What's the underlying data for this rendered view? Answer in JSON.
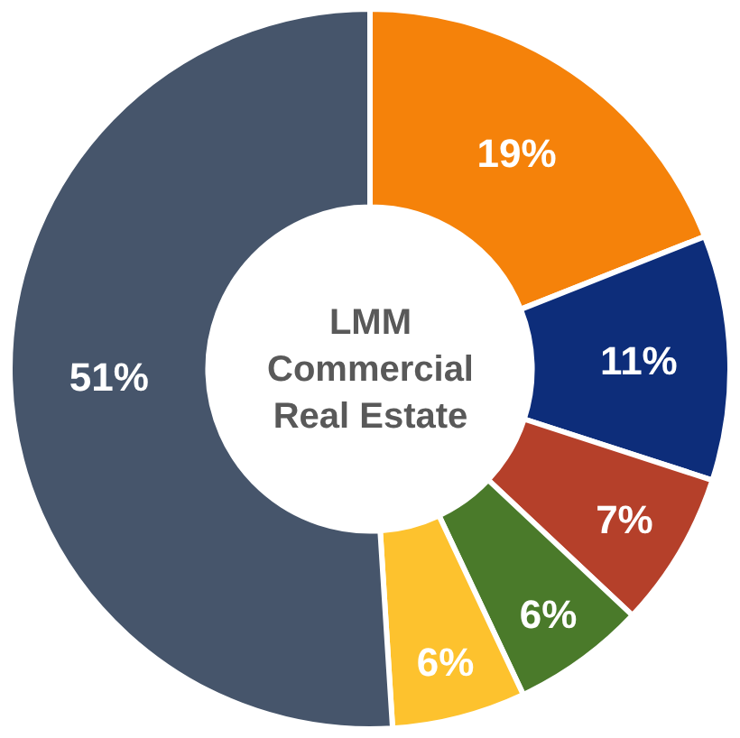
{
  "chart_data": {
    "type": "donut",
    "title": "LMM\nCommercial\nReal Estate",
    "categories": [
      null,
      null,
      null,
      null,
      null,
      null
    ],
    "values": [
      19,
      11,
      7,
      6,
      6,
      51
    ],
    "value_labels": [
      "19%",
      "11%",
      "7%",
      "6%",
      "6%",
      "51%"
    ],
    "colors": [
      "#f5820a",
      "#0d2d7a",
      "#b5402a",
      "#4a7a2a",
      "#fdc22e",
      "#46556b"
    ],
    "legend": false
  }
}
